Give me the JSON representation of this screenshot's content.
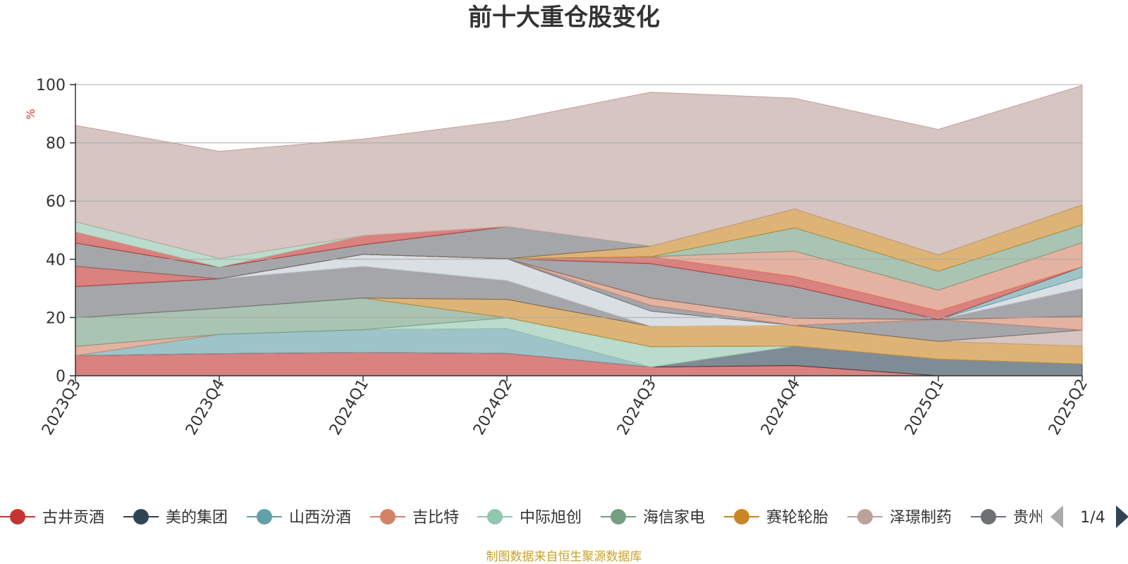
{
  "chart_data": {
    "type": "area",
    "title": "前十大重仓股变化",
    "ylabel": "%",
    "ylim": [
      0,
      100
    ],
    "yticks": [
      0,
      20,
      40,
      60,
      80,
      100
    ],
    "categories": [
      "2023Q3",
      "2023Q4",
      "2024Q1",
      "2024Q2",
      "2024Q3",
      "2024Q4",
      "2025Q1",
      "2025Q2"
    ],
    "stacked": true,
    "grid": true,
    "series": [
      {
        "name": "古井贡酒",
        "color": "#c23531",
        "values": [
          6.9,
          7.6,
          8.0,
          7.7,
          3.0,
          3.5,
          0.0,
          0.0
        ]
      },
      {
        "name": "美的集团",
        "color": "#2f4554",
        "values": [
          0.0,
          0.0,
          0.0,
          0.0,
          0.0,
          6.7,
          5.7,
          4.0
        ]
      },
      {
        "name": "山西汾酒",
        "color": "#61a0a8",
        "values": [
          0.0,
          6.6,
          7.8,
          8.5,
          0.0,
          0.0,
          0.0,
          0.0
        ]
      },
      {
        "name": "吉比特",
        "color": "#d48265",
        "values": [
          3.2,
          0.0,
          0.0,
          0.0,
          0.0,
          0.0,
          0.0,
          0.0
        ]
      },
      {
        "name": "中际旭创",
        "color": "#91c7ae",
        "values": [
          0.0,
          0.0,
          0.0,
          3.7,
          7.0,
          0.0,
          0.0,
          0.0
        ]
      },
      {
        "name": "海信家电",
        "color": "#749f83",
        "values": [
          9.8,
          9.0,
          10.9,
          0.0,
          0.0,
          0.0,
          0.0,
          0.0
        ]
      },
      {
        "name": "赛轮轮胎",
        "color": "#ca8622",
        "values": [
          0.0,
          0.0,
          0.0,
          6.3,
          7.0,
          7.1,
          6.1,
          6.2
        ]
      },
      {
        "name": "泽璟制药",
        "color": "#bda29a",
        "values": [
          0.0,
          0.0,
          0.0,
          0.0,
          0.0,
          0.0,
          0.0,
          5.5
        ]
      },
      {
        "name": "贵州茅台",
        "color": "#6e7074",
        "values": [
          10.7,
          10.1,
          10.9,
          6.5,
          0.0,
          0.0,
          7.5,
          0.0
        ]
      },
      {
        "name": "",
        "color": "#c4ccd3",
        "values": [
          0.0,
          0.0,
          4.1,
          7.5,
          5.2,
          0.0,
          0.0,
          0.0
        ]
      },
      {
        "name": "",
        "color": "#6e7074",
        "values": [
          0.0,
          0.0,
          0.0,
          0.0,
          2.0,
          0.0,
          0.0,
          0.0
        ]
      },
      {
        "name": "",
        "color": "#d48265",
        "values": [
          0.0,
          0.0,
          0.0,
          0.0,
          2.5,
          2.5,
          0.0,
          4.7
        ]
      },
      {
        "name": "",
        "color": "#6e7074",
        "values": [
          0.0,
          0.0,
          0.0,
          0.0,
          11.8,
          10.8,
          0.0,
          9.6
        ]
      },
      {
        "name": "",
        "color": "#c4ccd3",
        "values": [
          0.0,
          0.0,
          0.0,
          0.0,
          0.0,
          0.0,
          0.0,
          3.8
        ]
      },
      {
        "name": "",
        "color": "#61a0a8",
        "values": [
          0.0,
          0.0,
          0.0,
          0.0,
          0.0,
          0.0,
          0.0,
          3.6
        ]
      },
      {
        "name": "",
        "color": "#c23531",
        "values": [
          7.0,
          0.0,
          0.0,
          0.0,
          2.4,
          3.5,
          3.0,
          0.0
        ]
      },
      {
        "name": "",
        "color": "#d48265",
        "values": [
          0.0,
          0.0,
          0.0,
          0.0,
          0.0,
          8.7,
          7.1,
          8.3
        ]
      },
      {
        "name": "",
        "color": "#749f83",
        "values": [
          0.0,
          0.0,
          0.0,
          0.0,
          0.0,
          8.0,
          6.5,
          6.2
        ]
      },
      {
        "name": "",
        "color": "#ca8622",
        "values": [
          0.0,
          0.0,
          0.0,
          0.0,
          3.6,
          6.5,
          5.6,
          6.8
        ]
      },
      {
        "name": "",
        "color": "#6e7074",
        "values": [
          8.0,
          4.0,
          3.3,
          11.0,
          0.0,
          0.0,
          0.0,
          0.0
        ]
      },
      {
        "name": "",
        "color": "#c23531",
        "values": [
          3.8,
          0.0,
          3.1,
          0.0,
          0.0,
          0.0,
          0.0,
          0.0
        ]
      },
      {
        "name": "",
        "color": "#91c7ae",
        "values": [
          3.5,
          3.0,
          0.0,
          0.0,
          0.0,
          0.0,
          0.0,
          0.0
        ]
      },
      {
        "name": "",
        "color": "#bda29a",
        "values": [
          33.1,
          36.8,
          33.2,
          36.4,
          52.9,
          38.0,
          43.1,
          41.0
        ]
      }
    ]
  },
  "legend": {
    "items": [
      {
        "label": "古井贡酒",
        "color": "#c23531"
      },
      {
        "label": "美的集团",
        "color": "#2f4554"
      },
      {
        "label": "山西汾酒",
        "color": "#61a0a8"
      },
      {
        "label": "吉比特",
        "color": "#d48265"
      },
      {
        "label": "中际旭创",
        "color": "#91c7ae"
      },
      {
        "label": "海信家电",
        "color": "#749f83"
      },
      {
        "label": "赛轮轮胎",
        "color": "#ca8622"
      },
      {
        "label": "泽璟制药",
        "color": "#bda29a"
      },
      {
        "label": "贵州茅台",
        "color": "#6e7074"
      }
    ],
    "page": "1/4",
    "prev_icon": "triangle-left-icon",
    "next_icon": "triangle-right-icon"
  },
  "source": {
    "text": "制图数据来自恒生聚源数据库",
    "color": "#c9a227"
  },
  "colors": {
    "axis": "#333333",
    "ylabel": "#e03030",
    "grid": "#a8a8a8",
    "page_inactive": "#aaaaaa",
    "page_active": "#2f4554"
  }
}
